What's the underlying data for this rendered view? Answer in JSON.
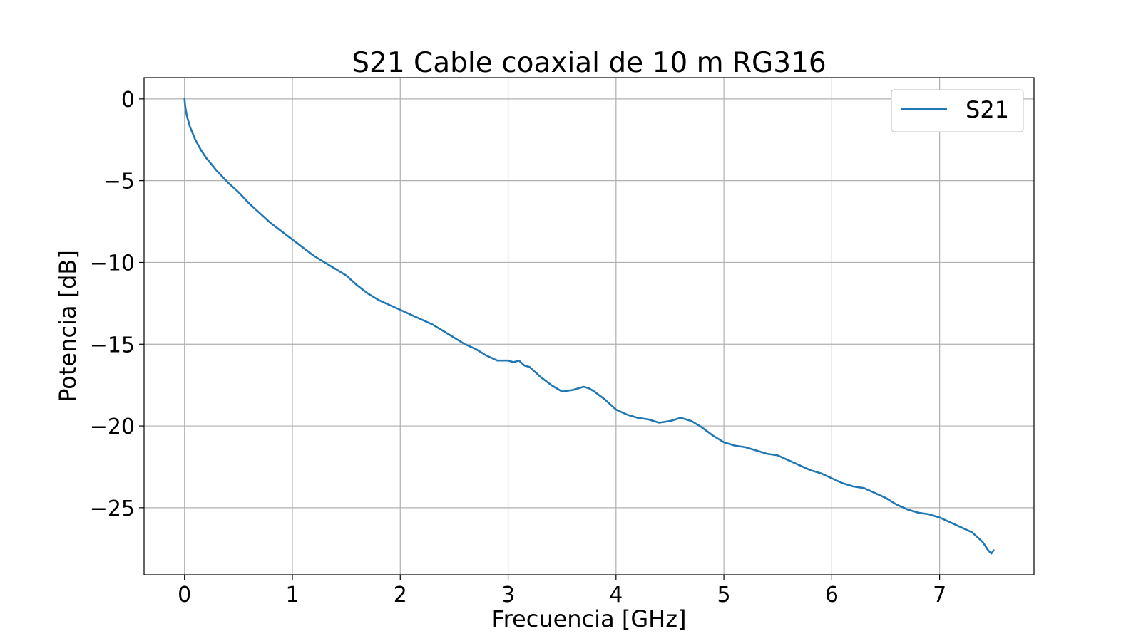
{
  "chart_data": {
    "type": "line",
    "title": "S21 Cable coaxial de 10 m RG316",
    "xlabel": "Frecuencia [GHz]",
    "ylabel": "Potencia [dB]",
    "xlim": [
      -0.375,
      7.875
    ],
    "ylim": [
      -29.1,
      1.3
    ],
    "xticks": [
      0,
      1,
      2,
      3,
      4,
      5,
      6,
      7
    ],
    "xtick_labels": [
      "0",
      "1",
      "2",
      "3",
      "4",
      "5",
      "6",
      "7"
    ],
    "yticks": [
      0,
      -5,
      -10,
      -15,
      -20,
      -25
    ],
    "ytick_labels": [
      "0",
      "−5",
      "−10",
      "−15",
      "−20",
      "−25"
    ],
    "grid": true,
    "legend_position": "top-right",
    "series": [
      {
        "name": "S21",
        "color": "#1f77b4",
        "x": [
          0,
          0.005,
          0.02,
          0.05,
          0.1,
          0.15,
          0.2,
          0.3,
          0.4,
          0.5,
          0.6,
          0.7,
          0.8,
          0.9,
          1.0,
          1.1,
          1.2,
          1.3,
          1.4,
          1.5,
          1.6,
          1.7,
          1.8,
          1.9,
          2.0,
          2.1,
          2.2,
          2.3,
          2.4,
          2.5,
          2.6,
          2.7,
          2.8,
          2.9,
          3.0,
          3.05,
          3.1,
          3.15,
          3.2,
          3.3,
          3.4,
          3.5,
          3.6,
          3.7,
          3.75,
          3.8,
          3.9,
          4.0,
          4.1,
          4.2,
          4.3,
          4.4,
          4.5,
          4.6,
          4.65,
          4.7,
          4.8,
          4.9,
          5.0,
          5.1,
          5.2,
          5.3,
          5.4,
          5.5,
          5.6,
          5.7,
          5.8,
          5.9,
          6.0,
          6.1,
          6.2,
          6.3,
          6.4,
          6.5,
          6.6,
          6.7,
          6.8,
          6.9,
          7.0,
          7.1,
          7.2,
          7.3,
          7.35,
          7.4,
          7.45,
          7.48,
          7.5
        ],
        "values": [
          0.0,
          -0.4,
          -1.0,
          -1.7,
          -2.5,
          -3.1,
          -3.6,
          -4.4,
          -5.1,
          -5.7,
          -6.4,
          -7.0,
          -7.6,
          -8.1,
          -8.6,
          -9.1,
          -9.6,
          -10.0,
          -10.4,
          -10.8,
          -11.4,
          -11.9,
          -12.3,
          -12.6,
          -12.9,
          -13.2,
          -13.5,
          -13.8,
          -14.2,
          -14.6,
          -15.0,
          -15.3,
          -15.7,
          -16.0,
          -16.0,
          -16.1,
          -16.0,
          -16.3,
          -16.4,
          -17.0,
          -17.5,
          -17.9,
          -17.8,
          -17.6,
          -17.7,
          -17.9,
          -18.4,
          -19.0,
          -19.3,
          -19.5,
          -19.6,
          -19.8,
          -19.7,
          -19.5,
          -19.6,
          -19.7,
          -20.1,
          -20.6,
          -21.0,
          -21.2,
          -21.3,
          -21.5,
          -21.7,
          -21.8,
          -22.1,
          -22.4,
          -22.7,
          -22.9,
          -23.2,
          -23.5,
          -23.7,
          -23.8,
          -24.1,
          -24.4,
          -24.8,
          -25.1,
          -25.3,
          -25.4,
          -25.6,
          -25.9,
          -26.2,
          -26.5,
          -26.8,
          -27.1,
          -27.6,
          -27.8,
          -27.6
        ]
      }
    ]
  }
}
